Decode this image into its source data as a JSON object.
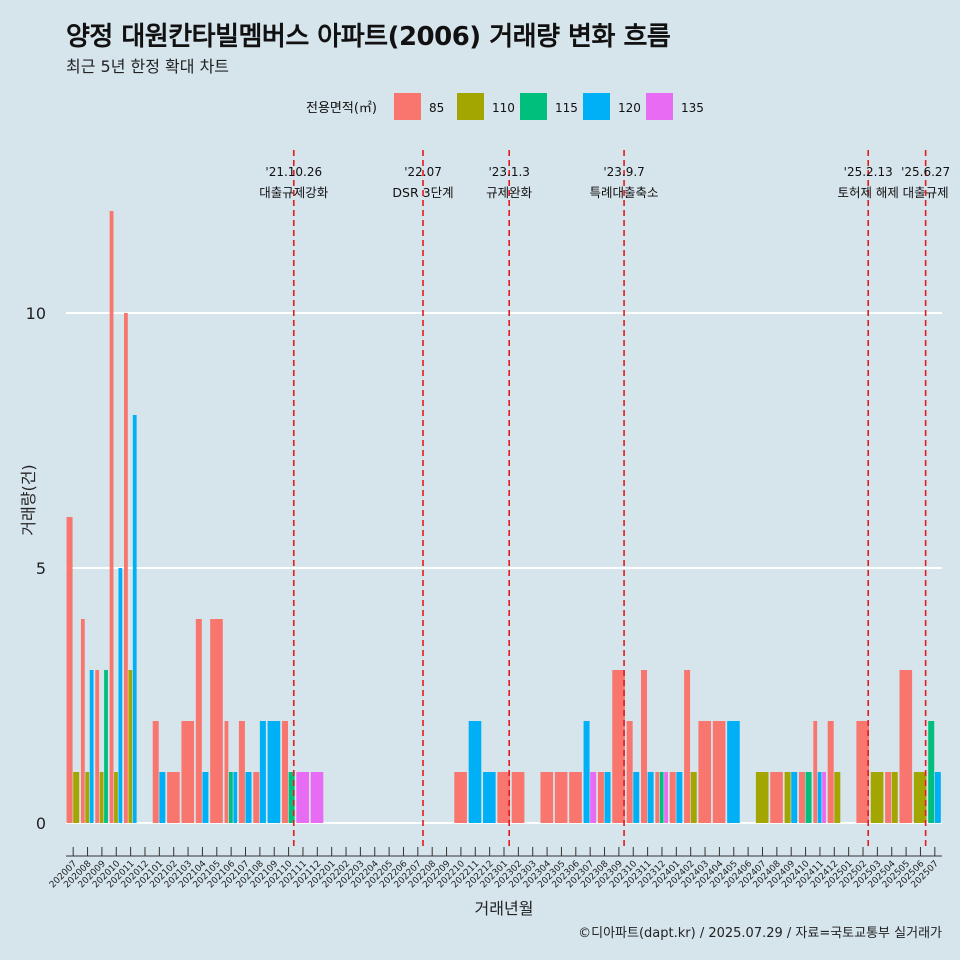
{
  "header": {
    "title": "양정 대원칸타빌멤버스 아파트(2006) 거래량 변화 흐름",
    "subtitle": "최근 5년 한정 확대 차트"
  },
  "caption": "©디아파트(dapt.kr) / 2025.07.29 / 자료=국토교통부 실거래가",
  "colors": {
    "background": "#d6e4ec",
    "85": "#F8766D",
    "110": "#A3A500",
    "115": "#00BF7D",
    "120": "#00B0F6",
    "135": "#E76BF3",
    "event_line": "#e41a1c"
  },
  "chart_data": {
    "type": "bar",
    "title": "양정 대원칸타빌멤버스 아파트(2006) 거래량 변화 흐름",
    "subtitle": "최근 5년 한정 확대 차트",
    "xlabel": "거래년월",
    "ylabel": "거래량(건)",
    "ylim": [
      0,
      12
    ],
    "yticks": [
      0,
      5,
      10
    ],
    "grid": true,
    "legend": {
      "title": "전용면적(㎡)",
      "position": "top",
      "entries": [
        "85",
        "110",
        "115",
        "120",
        "135"
      ]
    },
    "categories": [
      "202007",
      "202008",
      "202009",
      "202010",
      "202011",
      "202012",
      "202101",
      "202102",
      "202103",
      "202104",
      "202105",
      "202106",
      "202107",
      "202108",
      "202109",
      "202110",
      "202111",
      "202112",
      "202201",
      "202202",
      "202203",
      "202204",
      "202205",
      "202206",
      "202207",
      "202208",
      "202209",
      "202210",
      "202211",
      "202212",
      "202301",
      "202302",
      "202303",
      "202304",
      "202305",
      "202306",
      "202307",
      "202308",
      "202309",
      "202310",
      "202311",
      "202312",
      "202401",
      "202402",
      "202403",
      "202404",
      "202405",
      "202406",
      "202407",
      "202408",
      "202409",
      "202410",
      "202411",
      "202412",
      "202501",
      "202502",
      "202503",
      "202504",
      "202505",
      "202506",
      "202507"
    ],
    "series": [
      {
        "name": "85",
        "values": [
          6,
          4,
          3,
          12,
          10,
          0,
          2,
          1,
          2,
          4,
          4,
          2,
          2,
          1,
          0,
          2,
          0,
          0,
          0,
          0,
          0,
          0,
          0,
          0,
          0,
          0,
          0,
          1,
          0,
          0,
          1,
          1,
          0,
          1,
          1,
          1,
          0,
          1,
          3,
          2,
          3,
          1,
          1,
          3,
          2,
          2,
          0,
          0,
          0,
          1,
          0,
          1,
          2,
          2,
          0,
          2,
          0,
          1,
          3,
          0,
          0
        ]
      },
      {
        "name": "110",
        "values": [
          1,
          1,
          1,
          1,
          3,
          0,
          0,
          0,
          0,
          0,
          0,
          0,
          0,
          0,
          0,
          0,
          0,
          0,
          0,
          0,
          0,
          0,
          0,
          0,
          0,
          0,
          0,
          0,
          0,
          0,
          0,
          0,
          0,
          0,
          0,
          0,
          0,
          0,
          0,
          0,
          0,
          0,
          0,
          1,
          0,
          0,
          0,
          0,
          1,
          0,
          1,
          0,
          0,
          1,
          0,
          0,
          1,
          1,
          0,
          1,
          0
        ]
      },
      {
        "name": "115",
        "values": [
          0,
          0,
          3,
          0,
          0,
          0,
          0,
          0,
          0,
          0,
          0,
          1,
          0,
          0,
          0,
          1,
          0,
          0,
          0,
          0,
          0,
          0,
          0,
          0,
          0,
          0,
          0,
          0,
          0,
          0,
          0,
          0,
          0,
          0,
          0,
          0,
          0,
          0,
          0,
          0,
          0,
          1,
          0,
          0,
          0,
          0,
          0,
          0,
          0,
          0,
          0,
          1,
          0,
          0,
          0,
          0,
          0,
          0,
          0,
          0,
          2
        ]
      },
      {
        "name": "120",
        "values": [
          0,
          3,
          0,
          5,
          8,
          0,
          1,
          0,
          0,
          1,
          0,
          1,
          1,
          2,
          2,
          0,
          0,
          0,
          0,
          0,
          0,
          0,
          0,
          0,
          0,
          0,
          0,
          0,
          2,
          1,
          0,
          0,
          0,
          0,
          0,
          0,
          2,
          1,
          0,
          1,
          1,
          0,
          1,
          0,
          0,
          0,
          2,
          0,
          0,
          0,
          1,
          0,
          1,
          0,
          0,
          0,
          0,
          0,
          0,
          0,
          1
        ]
      },
      {
        "name": "135",
        "values": [
          0,
          0,
          0,
          0,
          0,
          0,
          0,
          0,
          0,
          0,
          0,
          0,
          0,
          0,
          0,
          0,
          1,
          1,
          0,
          0,
          0,
          0,
          0,
          0,
          0,
          0,
          0,
          0,
          0,
          0,
          0,
          0,
          0,
          0,
          0,
          0,
          1,
          0,
          0,
          0,
          0,
          1,
          0,
          0,
          0,
          0,
          0,
          0,
          0,
          0,
          0,
          0,
          1,
          0,
          0,
          0,
          0,
          0,
          0,
          0,
          0
        ]
      }
    ],
    "events": [
      {
        "date": "'21.10.26",
        "label": "대출규제강화",
        "after": "202110"
      },
      {
        "date": "'22.07",
        "label": "DSR 3단계",
        "after": "202207"
      },
      {
        "date": "'23.1.3",
        "label": "규제완화",
        "after": "202301"
      },
      {
        "date": "'23.9.7",
        "label": "특례대출축소",
        "after": "202309"
      },
      {
        "date": "'25.2.13",
        "label": "토허제 해제",
        "after": "202502"
      },
      {
        "date": "'25.6.27",
        "label": "대출규제",
        "after": "202506"
      }
    ]
  }
}
